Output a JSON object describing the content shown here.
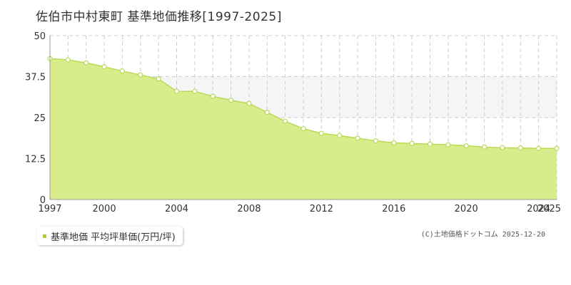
{
  "title": "佐伯市中村東町 基準地価推移[1997-2025]",
  "colors": {
    "area_fill": "#d9ec8c",
    "line": "#b9da52",
    "marker_fill": "#ffffff",
    "marker_stroke": "#b9da52",
    "grid": "#cccccc",
    "axis_text": "#333333",
    "band": "#f5f5f7",
    "legend_swatch": "#a9cf3a"
  },
  "legend": {
    "label": "基準地価 平均坪単価(万円/坪)"
  },
  "credit": "(C)土地価格ドットコム 2025-12-20",
  "chart_data": {
    "type": "area",
    "x": [
      1997,
      1998,
      1999,
      2000,
      2001,
      2002,
      2003,
      2004,
      2005,
      2006,
      2007,
      2008,
      2009,
      2010,
      2011,
      2012,
      2013,
      2014,
      2015,
      2016,
      2017,
      2018,
      2019,
      2020,
      2021,
      2022,
      2023,
      2024,
      2025
    ],
    "series": [
      {
        "name": "基準地価 平均坪単価(万円/坪)",
        "values": [
          43.0,
          42.6,
          41.7,
          40.5,
          39.2,
          38.0,
          36.8,
          33.0,
          33.0,
          31.5,
          30.3,
          29.3,
          26.6,
          23.9,
          21.6,
          20.2,
          19.5,
          18.7,
          17.9,
          17.3,
          17.1,
          16.9,
          16.7,
          16.4,
          16.0,
          15.8,
          15.7,
          15.6,
          15.6
        ]
      }
    ],
    "x_ticks": [
      "1997",
      "2000",
      "2004",
      "2008",
      "2012",
      "2016",
      "2020",
      "2024",
      "2025"
    ],
    "y_ticks": [
      "0",
      "12.5",
      "25",
      "37.5",
      "50"
    ],
    "xlim": [
      1997,
      2025
    ],
    "ylim": [
      0,
      50
    ],
    "xlabel": "",
    "ylabel": "",
    "grid": true,
    "legend_position": "bottom-left"
  }
}
